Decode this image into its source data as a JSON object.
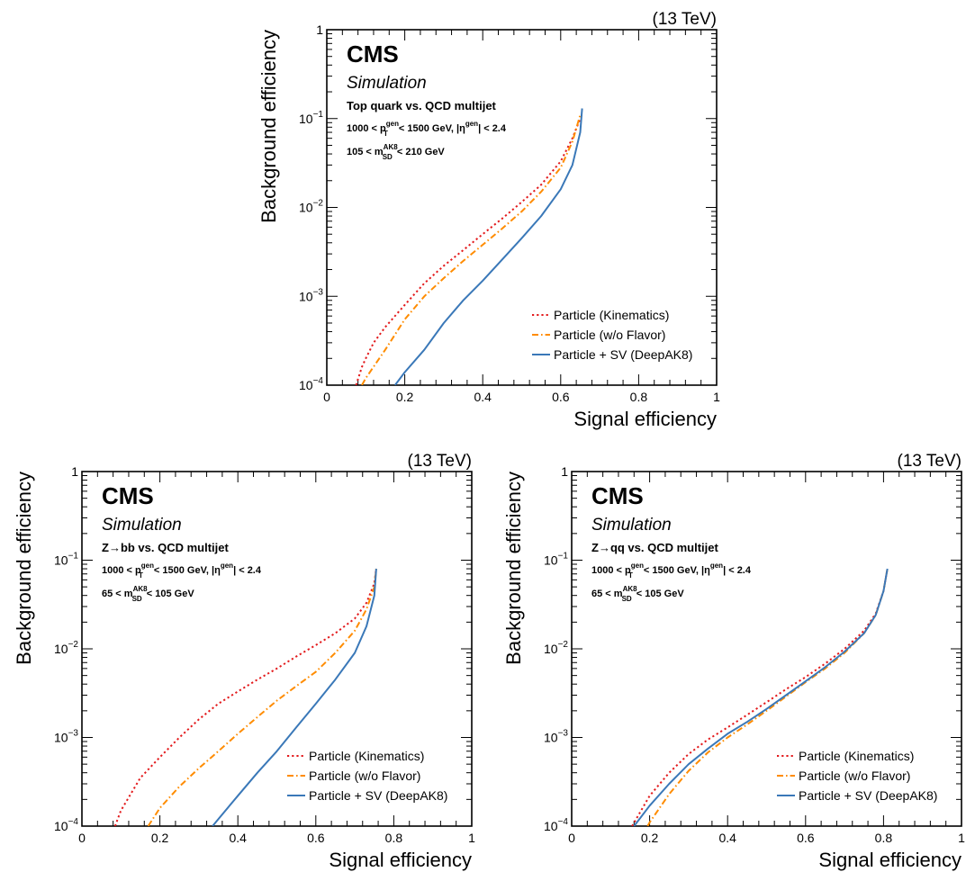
{
  "chart_data": [
    {
      "type": "line",
      "energy_label": "(13 TeV)",
      "experiment": "CMS",
      "subtitle": "Simulation",
      "process": "Top quark vs. QCD multijet",
      "cut_pt": {
        "a": "1000 < p",
        "sup": "gen",
        "sub": "T",
        "b": " < 1500 GeV, |η",
        "sup2": "gen",
        "c": "| < 2.4"
      },
      "cut_mass": {
        "a": "105 < m",
        "sup": "AK8",
        "sub": "SD",
        "b": " < 210 GeV"
      },
      "xlabel": "Signal efficiency",
      "ylabel": "Background efficiency",
      "xlim": [
        0,
        1
      ],
      "ylim": [
        0.0001,
        1
      ],
      "yscale": "log",
      "xticks": [
        "0",
        "0.2",
        "0.4",
        "0.6",
        "0.8",
        "1"
      ],
      "yticks": [
        {
          "base": "10",
          "exp": "−4"
        },
        {
          "base": "10",
          "exp": "−3"
        },
        {
          "base": "10",
          "exp": "−2"
        },
        {
          "base": "10",
          "exp": "−1"
        },
        {
          "base": "1",
          "exp": ""
        }
      ],
      "legend_position": "bottom-right",
      "series": [
        {
          "name": "Particle (Kinematics)",
          "color": "#e31a1c",
          "style": "dotted",
          "x": [
            0.075,
            0.09,
            0.1,
            0.12,
            0.15,
            0.2,
            0.25,
            0.3,
            0.35,
            0.4,
            0.45,
            0.5,
            0.55,
            0.6,
            0.63,
            0.65
          ],
          "y": [
            0.0001,
            0.00016,
            0.0002,
            0.0003,
            0.00045,
            0.0008,
            0.0014,
            0.0022,
            0.0033,
            0.005,
            0.0075,
            0.0115,
            0.018,
            0.033,
            0.06,
            0.1
          ]
        },
        {
          "name": "Particle (w/o Flavor)",
          "color": "#ff8c00",
          "style": "dashdot",
          "x": [
            0.09,
            0.1,
            0.15,
            0.2,
            0.25,
            0.3,
            0.35,
            0.4,
            0.45,
            0.5,
            0.55,
            0.6,
            0.63,
            0.65
          ],
          "y": [
            0.0001,
            0.00012,
            0.00025,
            0.00055,
            0.001,
            0.0016,
            0.0025,
            0.0038,
            0.0058,
            0.009,
            0.015,
            0.028,
            0.055,
            0.11
          ]
        },
        {
          "name": "Particle + SV (DeepAK8)",
          "color": "#3a78b8",
          "style": "solid",
          "x": [
            0.175,
            0.2,
            0.25,
            0.3,
            0.35,
            0.4,
            0.45,
            0.5,
            0.55,
            0.6,
            0.63,
            0.65,
            0.655
          ],
          "y": [
            0.0001,
            0.00014,
            0.00025,
            0.0005,
            0.0009,
            0.0015,
            0.0026,
            0.0045,
            0.008,
            0.016,
            0.03,
            0.07,
            0.13
          ]
        }
      ]
    },
    {
      "type": "line",
      "energy_label": "(13 TeV)",
      "experiment": "CMS",
      "subtitle": "Simulation",
      "process": "Z→bb vs. QCD multijet",
      "cut_pt": {
        "a": "1000 < p",
        "sup": "gen",
        "sub": "T",
        "b": " < 1500 GeV, |η",
        "sup2": "gen",
        "c": "| < 2.4"
      },
      "cut_mass": {
        "a": "65 < m",
        "sup": "AK8",
        "sub": "SD",
        "b": " < 105 GeV"
      },
      "xlabel": "Signal efficiency",
      "ylabel": "Background efficiency",
      "xlim": [
        0,
        1
      ],
      "ylim": [
        0.0001,
        1
      ],
      "yscale": "log",
      "xticks": [
        "0",
        "0.2",
        "0.4",
        "0.6",
        "0.8",
        "1"
      ],
      "yticks": [
        {
          "base": "10",
          "exp": "−4"
        },
        {
          "base": "10",
          "exp": "−3"
        },
        {
          "base": "10",
          "exp": "−2"
        },
        {
          "base": "10",
          "exp": "−1"
        },
        {
          "base": "1",
          "exp": ""
        }
      ],
      "legend_position": "bottom-right",
      "series": [
        {
          "name": "Particle (Kinematics)",
          "color": "#e31a1c",
          "style": "dotted",
          "x": [
            0.085,
            0.1,
            0.15,
            0.2,
            0.25,
            0.3,
            0.35,
            0.4,
            0.45,
            0.5,
            0.55,
            0.6,
            0.65,
            0.7,
            0.73,
            0.75,
            0.755
          ],
          "y": [
            0.0001,
            0.00015,
            0.00035,
            0.0006,
            0.001,
            0.0016,
            0.0024,
            0.0033,
            0.0045,
            0.006,
            0.0082,
            0.011,
            0.015,
            0.022,
            0.033,
            0.055,
            0.08
          ]
        },
        {
          "name": "Particle (w/o Flavor)",
          "color": "#ff8c00",
          "style": "dashdot",
          "x": [
            0.17,
            0.2,
            0.25,
            0.3,
            0.35,
            0.4,
            0.45,
            0.5,
            0.55,
            0.6,
            0.65,
            0.7,
            0.73,
            0.75,
            0.755
          ],
          "y": [
            0.0001,
            0.00016,
            0.00028,
            0.00045,
            0.0007,
            0.0011,
            0.0017,
            0.0026,
            0.0038,
            0.0055,
            0.009,
            0.016,
            0.028,
            0.05,
            0.08
          ]
        },
        {
          "name": "Particle + SV (DeepAK8)",
          "color": "#3a78b8",
          "style": "solid",
          "x": [
            0.335,
            0.35,
            0.4,
            0.45,
            0.5,
            0.55,
            0.6,
            0.65,
            0.7,
            0.73,
            0.75,
            0.755
          ],
          "y": [
            0.0001,
            0.00012,
            0.00022,
            0.0004,
            0.0007,
            0.0013,
            0.0024,
            0.0045,
            0.009,
            0.018,
            0.04,
            0.08
          ]
        }
      ]
    },
    {
      "type": "line",
      "energy_label": "(13 TeV)",
      "experiment": "CMS",
      "subtitle": "Simulation",
      "process": "Z→qq vs. QCD multijet",
      "cut_pt": {
        "a": "1000 < p",
        "sup": "gen",
        "sub": "T",
        "b": " < 1500 GeV, |η",
        "sup2": "gen",
        "c": "| < 2.4"
      },
      "cut_mass": {
        "a": "65 < m",
        "sup": "AK8",
        "sub": "SD",
        "b": " < 105 GeV"
      },
      "xlabel": "Signal efficiency",
      "ylabel": "Background efficiency",
      "xlim": [
        0,
        1
      ],
      "ylim": [
        0.0001,
        1
      ],
      "yscale": "log",
      "xticks": [
        "0",
        "0.2",
        "0.4",
        "0.6",
        "0.8",
        "1"
      ],
      "yticks": [
        {
          "base": "10",
          "exp": "−4"
        },
        {
          "base": "10",
          "exp": "−3"
        },
        {
          "base": "10",
          "exp": "−2"
        },
        {
          "base": "10",
          "exp": "−1"
        },
        {
          "base": "1",
          "exp": ""
        }
      ],
      "legend_position": "bottom-right",
      "series": [
        {
          "name": "Particle (Kinematics)",
          "color": "#e31a1c",
          "style": "dotted",
          "x": [
            0.155,
            0.2,
            0.25,
            0.3,
            0.35,
            0.4,
            0.45,
            0.5,
            0.55,
            0.6,
            0.65,
            0.7,
            0.75,
            0.78,
            0.8,
            0.81
          ],
          "y": [
            0.0001,
            0.00022,
            0.0004,
            0.00065,
            0.00095,
            0.0013,
            0.0018,
            0.0025,
            0.0035,
            0.0048,
            0.0068,
            0.01,
            0.016,
            0.025,
            0.045,
            0.08
          ]
        },
        {
          "name": "Particle (w/o Flavor)",
          "color": "#ff8c00",
          "style": "dashdot",
          "x": [
            0.195,
            0.2,
            0.25,
            0.3,
            0.35,
            0.4,
            0.45,
            0.5,
            0.55,
            0.6,
            0.65,
            0.7,
            0.75,
            0.78,
            0.8,
            0.81
          ],
          "y": [
            0.0001,
            0.00011,
            0.00023,
            0.00042,
            0.00068,
            0.001,
            0.0014,
            0.002,
            0.0029,
            0.0042,
            0.006,
            0.009,
            0.015,
            0.024,
            0.045,
            0.08
          ]
        },
        {
          "name": "Particle + SV (DeepAK8)",
          "color": "#3a78b8",
          "style": "solid",
          "x": [
            0.16,
            0.2,
            0.25,
            0.3,
            0.35,
            0.4,
            0.45,
            0.5,
            0.55,
            0.6,
            0.65,
            0.7,
            0.75,
            0.78,
            0.8,
            0.81
          ],
          "y": [
            0.0001,
            0.00017,
            0.0003,
            0.0005,
            0.00075,
            0.0011,
            0.0015,
            0.0021,
            0.003,
            0.0043,
            0.0062,
            0.0093,
            0.015,
            0.024,
            0.045,
            0.08
          ]
        }
      ]
    }
  ]
}
